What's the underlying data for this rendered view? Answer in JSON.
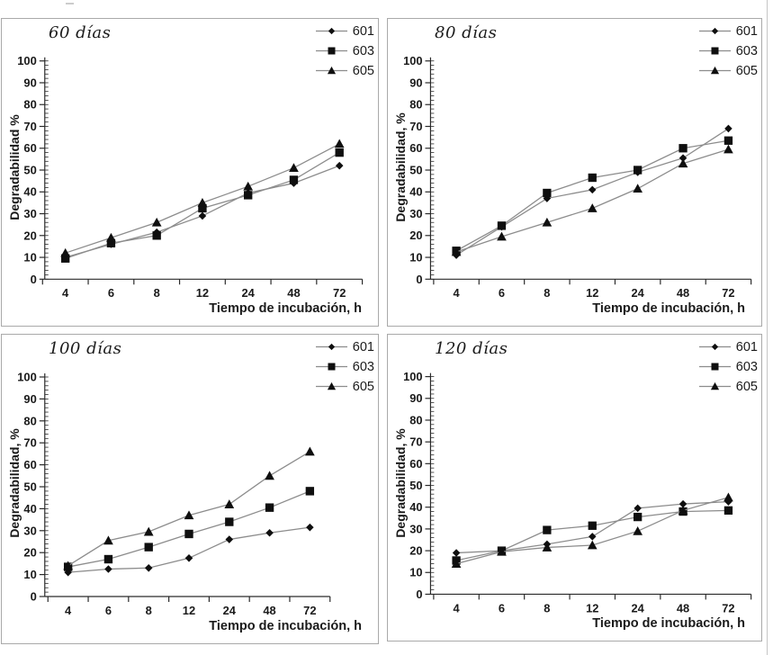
{
  "styles": {
    "background": "#ffffff",
    "panel_border": "#a9a9a9",
    "axis_color": "#2a2a2a",
    "line_color": "#8c8c8c",
    "marker_color": "#0f0f0f",
    "text_color": "#1a1a1a"
  },
  "chart_data": [
    {
      "type": "line",
      "title": "60 días",
      "ylabel": "Degradabilidad %",
      "xlabel": "Tiempo de incubación, h",
      "x_tick_labels": [
        "4",
        "6",
        "8",
        "12",
        "24",
        "48",
        "72"
      ],
      "ylim": [
        0,
        100
      ],
      "ytick_step": 10,
      "grid": false,
      "legend_position": "top-right",
      "series": [
        {
          "name": "601",
          "marker": "diamond",
          "values": [
            10,
            16,
            21.5,
            29,
            39.5,
            44,
            52
          ]
        },
        {
          "name": "603",
          "marker": "square",
          "values": [
            9.5,
            16.5,
            20,
            32.5,
            38.5,
            45.5,
            58
          ]
        },
        {
          "name": "605",
          "marker": "triangle",
          "values": [
            12,
            19,
            26,
            35,
            42.5,
            51,
            62
          ]
        }
      ]
    },
    {
      "type": "line",
      "title": "80 días",
      "ylabel": "Degradabilidad, %",
      "xlabel": "Tiempo de incubación, h",
      "x_tick_labels": [
        "4",
        "6",
        "8",
        "12",
        "24",
        "48",
        "72"
      ],
      "ylim": [
        0,
        100
      ],
      "ytick_step": 10,
      "grid": false,
      "legend_position": "top-right",
      "series": [
        {
          "name": "601",
          "marker": "diamond",
          "values": [
            11,
            24,
            37,
            41,
            49,
            55.5,
            69
          ]
        },
        {
          "name": "603",
          "marker": "square",
          "values": [
            13,
            24.5,
            39.5,
            46.5,
            50,
            60,
            63.5
          ]
        },
        {
          "name": "605",
          "marker": "triangle",
          "values": [
            12.5,
            19.5,
            26,
            32.5,
            41.5,
            53,
            59.5
          ]
        }
      ]
    },
    {
      "type": "line",
      "title": "100 días",
      "ylabel": "Degradabilidad, %",
      "xlabel": "Tiempo de incubación, h",
      "x_tick_labels": [
        "4",
        "6",
        "8",
        "12",
        "24",
        "48",
        "72"
      ],
      "ylim": [
        0,
        100
      ],
      "ytick_step": 10,
      "grid": false,
      "legend_position": "top-right",
      "series": [
        {
          "name": "601",
          "marker": "diamond",
          "values": [
            11,
            12.5,
            13,
            17.5,
            26,
            29,
            31.5
          ]
        },
        {
          "name": "603",
          "marker": "square",
          "values": [
            13.5,
            17,
            22.5,
            28.5,
            34,
            40.5,
            48
          ]
        },
        {
          "name": "605",
          "marker": "triangle",
          "values": [
            14,
            25.5,
            29.5,
            37,
            42,
            55,
            66
          ]
        }
      ]
    },
    {
      "type": "line",
      "title": "120 días",
      "ylabel": "Degradabilidad, %",
      "xlabel": "Tiempo de incubación, h",
      "x_tick_labels": [
        "4",
        "6",
        "8",
        "12",
        "24",
        "48",
        "72"
      ],
      "ylim": [
        0,
        100
      ],
      "ytick_step": 10,
      "grid": false,
      "legend_position": "top-right",
      "series": [
        {
          "name": "601",
          "marker": "diamond",
          "values": [
            19,
            20,
            23,
            26.5,
            39.5,
            41.5,
            42.5
          ]
        },
        {
          "name": "603",
          "marker": "square",
          "values": [
            15.5,
            20,
            29.5,
            31.5,
            35.5,
            38,
            38.5
          ]
        },
        {
          "name": "605",
          "marker": "triangle",
          "values": [
            14,
            19.5,
            21.5,
            22.5,
            29,
            38.5,
            44.5
          ]
        }
      ]
    }
  ]
}
